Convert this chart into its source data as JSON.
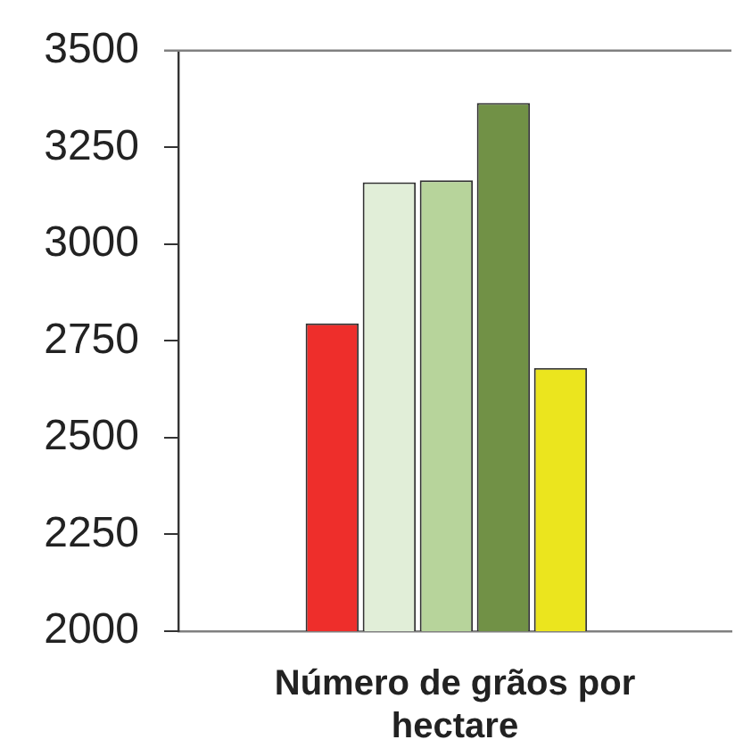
{
  "chart_data": {
    "type": "bar",
    "xlabel": "Número de grãos por hectare",
    "categories": [
      null,
      null,
      null,
      null,
      null
    ],
    "values": [
      2795,
      3160,
      3165,
      3365,
      2680
    ],
    "colors": [
      "#ee2e2b",
      "#e1eed8",
      "#b7d49b",
      "#719146",
      "#ebe51e"
    ],
    "ylim": [
      2000,
      3500
    ],
    "yticks": [
      2000,
      2250,
      2500,
      2750,
      3000,
      3250,
      3500
    ],
    "grid": false,
    "legend": false
  }
}
